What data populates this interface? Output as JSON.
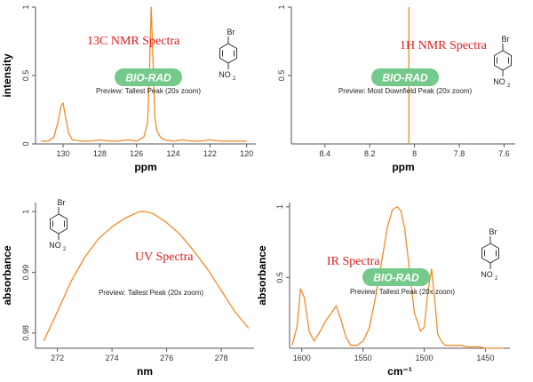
{
  "colors": {
    "line": "#f28c28",
    "title": "#e31a1c",
    "logo": "#74c98b",
    "axis": "#555555"
  },
  "icons": {
    "logo": "bio-rad-logo",
    "molecule": "4-bromonitrobenzene-structure-icon"
  },
  "chart_data": [
    {
      "id": "c13",
      "type": "line",
      "title": "13C NMR Spectra",
      "xlabel": "ppm",
      "ylabel": "intensity",
      "xlim": [
        131.5,
        119.5
      ],
      "ylim": [
        0,
        1
      ],
      "xticks": [
        130,
        128,
        126,
        124,
        122,
        120
      ],
      "yticks": [
        0,
        0.5,
        1
      ],
      "ytick_labels": [
        "0",
        "0.5",
        "1"
      ],
      "logo": "BIO-RAD",
      "caption": "Preview: Tallest Peak (20x zoom)",
      "molecule": {
        "top": "Br",
        "bottom": "NO",
        "sub": "2"
      },
      "grid": false,
      "series": [
        {
          "x": [
            131.2,
            130.8,
            130.5,
            130.3,
            130.1,
            130.0,
            129.9,
            129.7,
            129.5,
            129.0,
            128.5,
            128.0,
            127.5,
            127.0,
            126.5,
            126.0,
            125.6,
            125.4,
            125.3,
            125.2,
            125.1,
            125.0,
            124.9,
            124.7,
            124.5,
            124.0,
            123.5,
            123.0,
            122.5,
            122.0,
            121.5,
            121.0,
            120.5,
            120.0
          ],
          "y": [
            0.02,
            0.02,
            0.05,
            0.15,
            0.28,
            0.3,
            0.22,
            0.08,
            0.03,
            0.02,
            0.02,
            0.03,
            0.02,
            0.02,
            0.03,
            0.02,
            0.05,
            0.15,
            0.5,
            1.0,
            0.6,
            0.2,
            0.1,
            0.05,
            0.03,
            0.02,
            0.03,
            0.02,
            0.02,
            0.03,
            0.02,
            0.02,
            0.02,
            0.02
          ]
        }
      ]
    },
    {
      "id": "h1",
      "type": "line",
      "title": "1H NMR Spectra",
      "xlabel": "ppm",
      "ylabel": "",
      "xlim": [
        8.55,
        7.55
      ],
      "ylim": [
        0,
        1
      ],
      "xticks": [
        8.4,
        8.2,
        8,
        7.8,
        7.6
      ],
      "yticks": [
        0.5,
        1
      ],
      "ytick_labels": [
        "0.5",
        "1"
      ],
      "logo": "BIO-RAD",
      "caption": "Preview: Most Downfield Peak (20x zoom)",
      "molecule": {
        "top": "Br",
        "bottom": "NO",
        "sub": "2"
      },
      "grid": false,
      "series": [
        {
          "x": [
            8.025,
            8.025
          ],
          "y": [
            0,
            1.0
          ]
        }
      ]
    },
    {
      "id": "uv",
      "type": "line",
      "title": "UV Spectra",
      "xlabel": "nm",
      "ylabel": "absorbance",
      "xlim": [
        271.2,
        279.2
      ],
      "ylim": [
        0.9775,
        1.0015
      ],
      "xticks": [
        272,
        274,
        276,
        278
      ],
      "yticks": [
        0.98,
        0.99,
        1
      ],
      "ytick_labels": [
        "0.98",
        "0.99",
        "1"
      ],
      "logo": "",
      "caption": "Preview: Tallest Peak (20x zoom)",
      "molecule": {
        "top": "Br",
        "bottom": "NO",
        "sub": "2"
      },
      "grid": false,
      "series": [
        {
          "x": [
            271.5,
            272.0,
            272.5,
            273.0,
            273.5,
            274.0,
            274.5,
            275.0,
            275.2,
            275.5,
            276.0,
            276.5,
            277.0,
            277.5,
            278.0,
            278.5,
            279.0
          ],
          "y": [
            0.9787,
            0.9835,
            0.9885,
            0.9925,
            0.9955,
            0.9975,
            0.999,
            1.0,
            1.0,
            0.9997,
            0.9982,
            0.9962,
            0.9935,
            0.9905,
            0.987,
            0.9835,
            0.9808
          ]
        }
      ]
    },
    {
      "id": "ir",
      "type": "line",
      "title": "IR Spectra",
      "xlabel": "cm⁻¹",
      "ylabel": "absorbance",
      "xlim": [
        1610,
        1430
      ],
      "ylim": [
        0,
        1.03
      ],
      "xticks": [
        1600,
        1550,
        1500,
        1450
      ],
      "yticks": [
        0.5,
        1
      ],
      "ytick_labels": [
        "0.5",
        "1"
      ],
      "logo": "BIO-RAD",
      "caption": "Preview: Tallest Peak (20x zoom)",
      "molecule": {
        "top": "Br",
        "bottom": "NO",
        "sub": "2"
      },
      "grid": false,
      "series": [
        {
          "x": [
            1608,
            1604,
            1601,
            1598,
            1594,
            1590,
            1585,
            1580,
            1575,
            1572,
            1568,
            1564,
            1560,
            1555,
            1550,
            1545,
            1540,
            1535,
            1530,
            1526,
            1522,
            1519,
            1516,
            1512,
            1508,
            1503,
            1500,
            1497,
            1494,
            1491,
            1489,
            1486,
            1483,
            1480,
            1475,
            1470,
            1465,
            1460,
            1455,
            1450,
            1445,
            1440,
            1435
          ],
          "y": [
            0.02,
            0.15,
            0.42,
            0.36,
            0.12,
            0.05,
            0.12,
            0.2,
            0.26,
            0.3,
            0.2,
            0.08,
            0.02,
            0.02,
            0.05,
            0.14,
            0.35,
            0.6,
            0.86,
            0.98,
            1.0,
            0.97,
            0.85,
            0.55,
            0.25,
            0.12,
            0.15,
            0.4,
            0.56,
            0.3,
            0.1,
            0.05,
            0.02,
            0.02,
            0.02,
            0.02,
            0.01,
            0.01,
            0.01,
            0.0,
            0.0,
            0.0,
            0.0
          ]
        }
      ]
    }
  ]
}
